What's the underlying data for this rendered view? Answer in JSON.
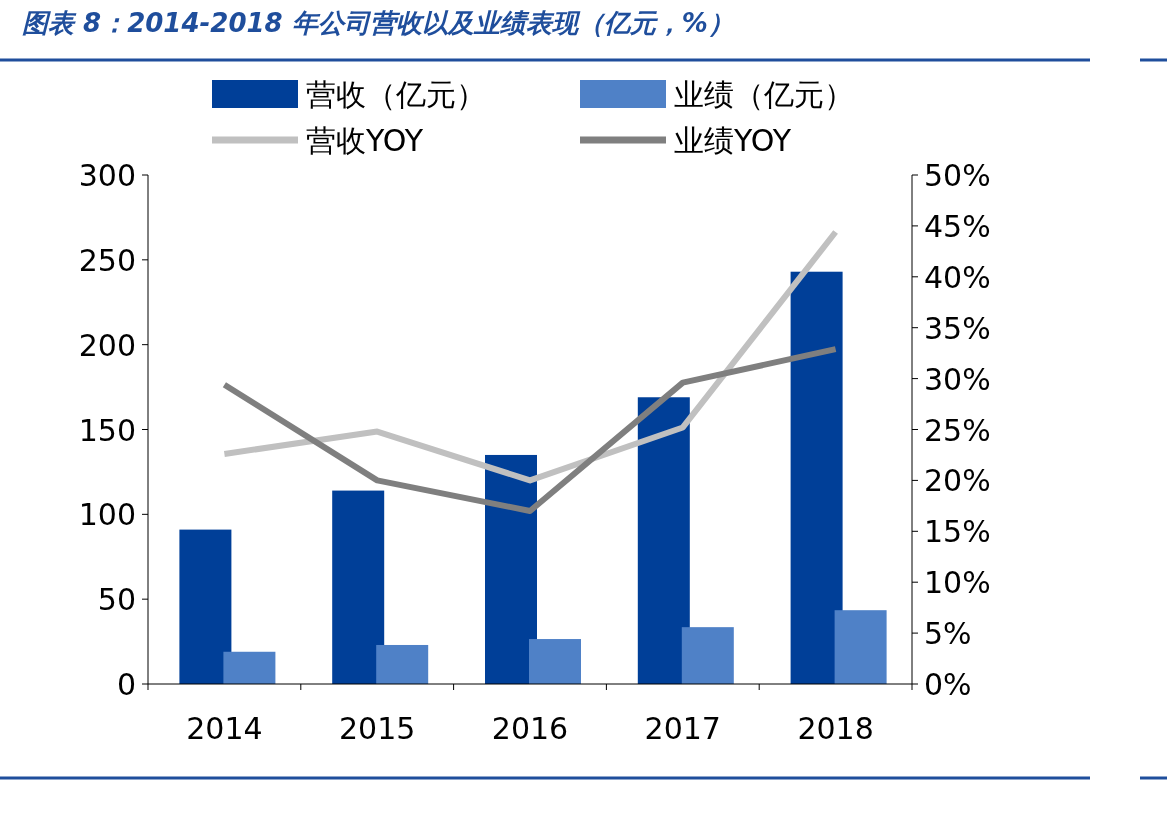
{
  "chart_data": {
    "type": "bar",
    "title": "图表 8：2014-2018 年公司营收以及业绩表现（亿元，%）",
    "categories": [
      "2014",
      "2015",
      "2016",
      "2017",
      "2018"
    ],
    "series": [
      {
        "name": "营收（亿元）",
        "color": "#003f98",
        "values": [
          91,
          114,
          135,
          169,
          243
        ]
      },
      {
        "name": "业绩（亿元）",
        "color": "#4f81c7",
        "values": [
          19,
          23,
          26.5,
          33.5,
          43.5
        ]
      },
      {
        "name": "营收YOY",
        "type": "line",
        "axis": "y2",
        "color": "#c0c0c0",
        "values": [
          22.6,
          24.8,
          20.0,
          25.2,
          44.4
        ]
      },
      {
        "name": "业绩YOY",
        "type": "line",
        "axis": "y2",
        "color": "#7f7f7f",
        "values": [
          29.4,
          20.0,
          17.0,
          29.6,
          32.9
        ]
      }
    ],
    "ylim": [
      0,
      300
    ],
    "yticks": [
      0,
      50,
      100,
      150,
      200,
      250,
      300
    ],
    "y2lim": [
      0,
      50
    ],
    "y2ticks": [
      {
        "value": 0,
        "label": "0%"
      },
      {
        "value": 5,
        "label": "5%"
      },
      {
        "value": 10,
        "label": "10%"
      },
      {
        "value": 15,
        "label": "15%"
      },
      {
        "value": 20,
        "label": "20%"
      },
      {
        "value": 25,
        "label": "25%"
      },
      {
        "value": 30,
        "label": "30%"
      },
      {
        "value": 35,
        "label": "35%"
      },
      {
        "value": 40,
        "label": "40%"
      },
      {
        "value": 45,
        "label": "45%"
      },
      {
        "value": 50,
        "label": "50%"
      }
    ],
    "legend": "top",
    "marker": "none",
    "line_style": "solid",
    "grid": false
  }
}
